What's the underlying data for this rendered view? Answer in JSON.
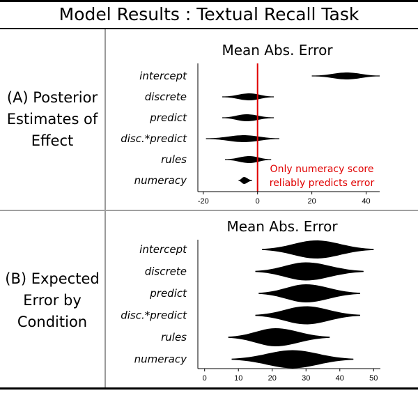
{
  "title": "Model Results : Textual Recall Task",
  "sections": [
    {
      "label_lines": [
        "(A) Posterior",
        "Estimates of",
        "Effect"
      ]
    },
    {
      "label_lines": [
        "(B) Expected",
        "Error by",
        "Condition"
      ]
    }
  ],
  "chart_data": [
    {
      "type": "violin",
      "title": "Mean Abs. Error",
      "categories": [
        "intercept",
        "discrete",
        "predict",
        "disc.*predict",
        "rules",
        "numeracy"
      ],
      "series": [
        {
          "values": [
            {
              "min": 20,
              "center": 33,
              "max": 45
            },
            {
              "min": -13,
              "center": -3,
              "max": 6
            },
            {
              "min": -13,
              "center": -4,
              "max": 6
            },
            {
              "min": -19,
              "center": -5,
              "max": 8
            },
            {
              "min": -12,
              "center": -3,
              "max": 5
            },
            {
              "min": -7,
              "center": -5,
              "max": -2
            }
          ]
        }
      ],
      "xlim": [
        -22,
        45
      ],
      "xticks": [
        -20,
        0,
        20,
        40
      ],
      "reference_line": 0,
      "reference_color": "#e00000",
      "annotation": [
        "Only numeracy score",
        "reliably predicts error"
      ]
    },
    {
      "type": "violin",
      "title": "Mean Abs. Error",
      "categories": [
        "intercept",
        "discrete",
        "predict",
        "disc.*predict",
        "rules",
        "numeracy"
      ],
      "series": [
        {
          "values": [
            {
              "min": 17,
              "center": 33,
              "max": 50
            },
            {
              "min": 15,
              "center": 30,
              "max": 47
            },
            {
              "min": 16,
              "center": 30,
              "max": 46
            },
            {
              "min": 15,
              "center": 30,
              "max": 46
            },
            {
              "min": 7,
              "center": 21,
              "max": 37
            },
            {
              "min": 8,
              "center": 26,
              "max": 44
            }
          ]
        }
      ],
      "xlim": [
        -2,
        52
      ],
      "xticks": [
        0,
        10,
        20,
        30,
        40,
        50
      ]
    }
  ]
}
